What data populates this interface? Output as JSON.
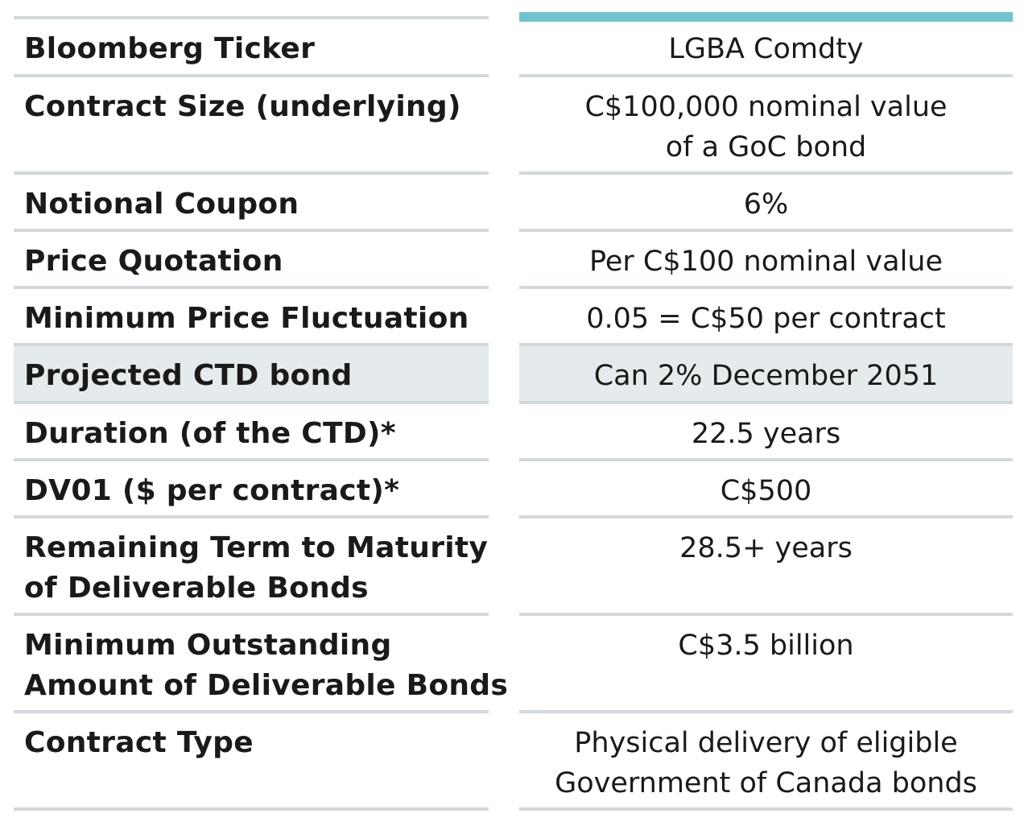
{
  "spec_table": {
    "rows": [
      {
        "label": [
          "Bloomberg Ticker"
        ],
        "value": [
          "LGBA Comdty"
        ],
        "highlighted": false
      },
      {
        "label": [
          "Contract Size (underlying)"
        ],
        "value": [
          "C$100,000 nominal value",
          "of a GoC bond"
        ],
        "highlighted": false
      },
      {
        "label": [
          "Notional Coupon"
        ],
        "value": [
          "6%"
        ],
        "highlighted": false
      },
      {
        "label": [
          "Price Quotation"
        ],
        "value": [
          "Per C$100 nominal value"
        ],
        "highlighted": false
      },
      {
        "label": [
          "Minimum Price Fluctuation"
        ],
        "value": [
          "0.05 = C$50 per contract"
        ],
        "highlighted": false
      },
      {
        "label": [
          "Projected CTD bond"
        ],
        "value": [
          "Can 2% December 2051"
        ],
        "highlighted": true
      },
      {
        "label": [
          "Duration (of the CTD)*"
        ],
        "value": [
          "22.5 years"
        ],
        "highlighted": false
      },
      {
        "label": [
          "DV01 ($ per contract)*"
        ],
        "value": [
          "C$500"
        ],
        "highlighted": false
      },
      {
        "label": [
          "Remaining Term to Maturity",
          "of Deliverable Bonds"
        ],
        "value": [
          "28.5+ years"
        ],
        "highlighted": false
      },
      {
        "label": [
          "Minimum Outstanding",
          "Amount of Deliverable Bonds"
        ],
        "value": [
          "C$3.5 billion"
        ],
        "highlighted": false
      },
      {
        "label": [
          "Contract Type"
        ],
        "value": [
          "Physical delivery of eligible",
          "Government of Canada bonds"
        ],
        "highlighted": false
      }
    ]
  },
  "colors": {
    "header_accent": "#6fc3cc",
    "rule": "#d3d8dc",
    "highlight_row": "#e5eaed",
    "text": "#1a1a1a"
  }
}
